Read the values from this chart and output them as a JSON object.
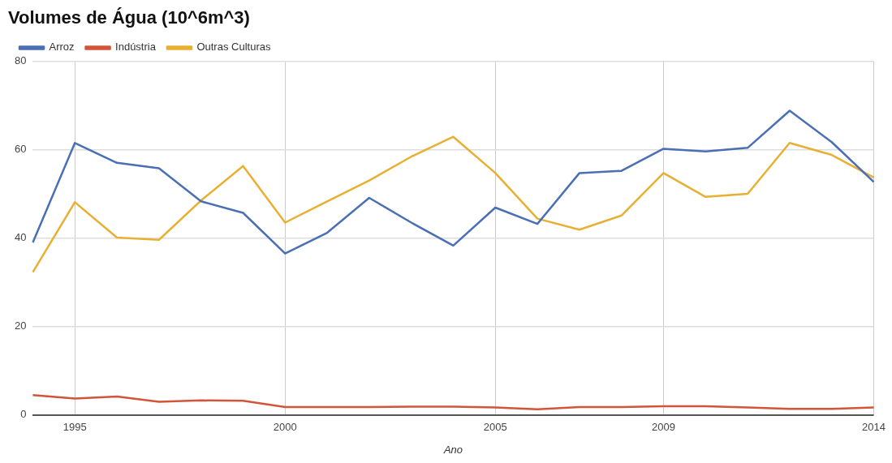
{
  "chart_data": {
    "type": "line",
    "title": "Volumes de Água (10^6m^3)",
    "xlabel": "Ano",
    "categories": [
      null,
      "1995",
      null,
      null,
      null,
      null,
      "2000",
      null,
      null,
      null,
      null,
      "2005",
      null,
      null,
      null,
      "2009",
      null,
      null,
      null,
      null,
      "2014"
    ],
    "series": [
      {
        "name": "Arroz",
        "color": "#4a6fb5",
        "values": [
          39.0,
          61.5,
          57.0,
          55.8,
          48.3,
          45.7,
          36.5,
          41.2,
          49.1,
          43.5,
          38.3,
          46.9,
          43.2,
          54.7,
          55.2,
          60.2,
          59.6,
          60.4,
          68.8,
          61.7,
          52.7
        ]
      },
      {
        "name": "Indústria",
        "color": "#d2553a",
        "values": [
          4.5,
          3.7,
          4.2,
          3.0,
          3.3,
          3.2,
          1.8,
          1.8,
          1.8,
          1.9,
          1.9,
          1.7,
          1.3,
          1.8,
          1.8,
          2.0,
          2.0,
          1.7,
          1.4,
          1.4,
          1.7
        ]
      },
      {
        "name": "Outras Culturas",
        "color": "#e8b032",
        "values": [
          32.3,
          48.1,
          40.1,
          39.6,
          48.5,
          56.3,
          43.5,
          48.3,
          53.0,
          58.4,
          62.9,
          54.7,
          44.4,
          41.9,
          45.1,
          54.7,
          49.3,
          50.0,
          61.5,
          58.8,
          53.7
        ]
      }
    ],
    "ylim": [
      0,
      80
    ],
    "yticks": [
      0,
      20,
      40,
      60,
      80
    ],
    "grid": true,
    "legend": "top left",
    "marker": "none",
    "line_style": "solid"
  }
}
